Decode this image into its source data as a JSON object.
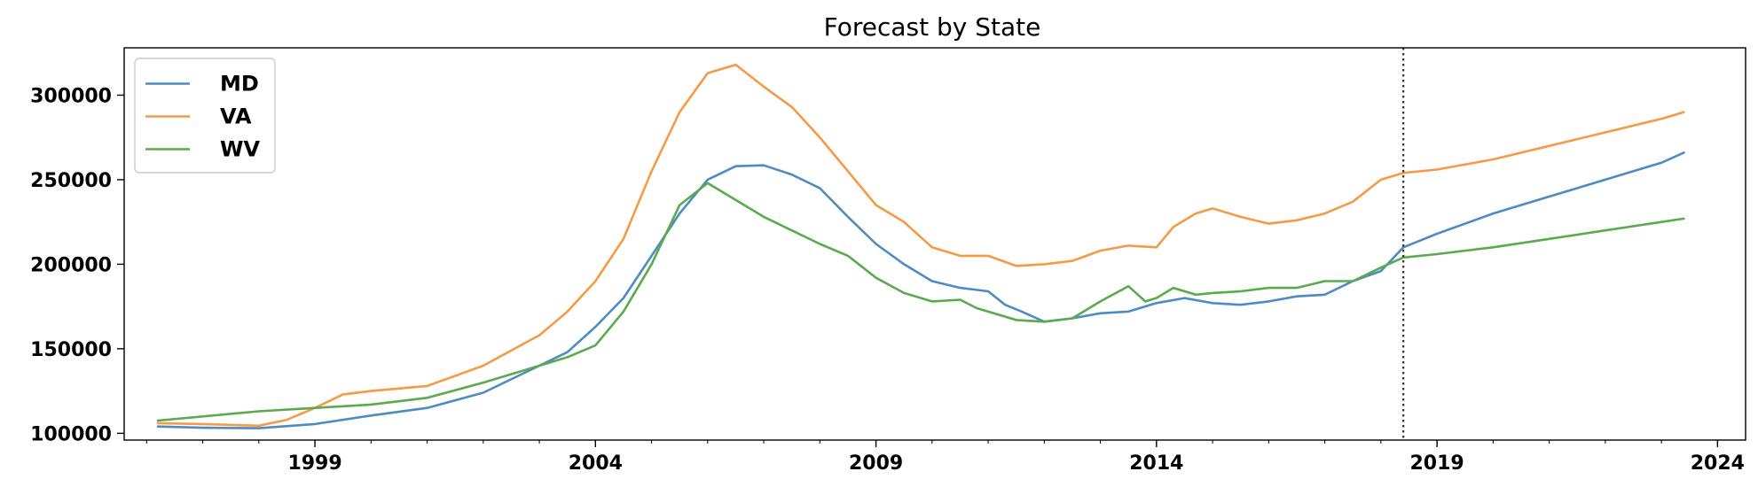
{
  "chart_data": {
    "type": "line",
    "title": "Forecast by State",
    "xlabel": "",
    "ylabel": "",
    "xlim": [
      1995.6,
      2024.5
    ],
    "ylim": [
      96000,
      328000
    ],
    "x_ticks": [
      1999,
      2004,
      2009,
      2014,
      2019,
      2024
    ],
    "y_ticks": [
      100000,
      150000,
      200000,
      250000,
      300000
    ],
    "y_tick_labels": [
      "100000",
      "150000",
      "200000",
      "250000",
      "300000"
    ],
    "minor_x_ticks_per_year": true,
    "forecast_start": 2018.4,
    "legend_position": "top-left",
    "grid": false,
    "series": [
      {
        "name": "MD",
        "color": "#4f8bc2",
        "points": [
          [
            1996.2,
            104000
          ],
          [
            1997.0,
            103300
          ],
          [
            1998.0,
            103000
          ],
          [
            1999.0,
            105500
          ],
          [
            2000.0,
            110500
          ],
          [
            2001.0,
            115000
          ],
          [
            2002.0,
            124000
          ],
          [
            2003.0,
            140000
          ],
          [
            2003.5,
            148000
          ],
          [
            2004.0,
            163000
          ],
          [
            2004.5,
            180000
          ],
          [
            2005.0,
            205000
          ],
          [
            2005.5,
            230000
          ],
          [
            2006.0,
            250000
          ],
          [
            2006.5,
            258000
          ],
          [
            2007.0,
            258500
          ],
          [
            2007.5,
            253000
          ],
          [
            2008.0,
            245000
          ],
          [
            2008.5,
            228000
          ],
          [
            2009.0,
            212000
          ],
          [
            2009.5,
            200000
          ],
          [
            2010.0,
            190000
          ],
          [
            2010.5,
            186000
          ],
          [
            2011.0,
            184000
          ],
          [
            2011.3,
            176000
          ],
          [
            2011.6,
            172000
          ],
          [
            2012.0,
            166000
          ],
          [
            2012.5,
            168000
          ],
          [
            2013.0,
            171000
          ],
          [
            2013.5,
            172000
          ],
          [
            2014.0,
            177000
          ],
          [
            2014.5,
            180000
          ],
          [
            2015.0,
            177000
          ],
          [
            2015.5,
            176000
          ],
          [
            2016.0,
            178000
          ],
          [
            2016.5,
            181000
          ],
          [
            2017.0,
            182000
          ],
          [
            2017.5,
            190000
          ],
          [
            2018.0,
            196000
          ],
          [
            2018.4,
            210000
          ],
          [
            2019.0,
            218000
          ],
          [
            2020.0,
            230000
          ],
          [
            2021.0,
            240000
          ],
          [
            2022.0,
            250000
          ],
          [
            2023.0,
            260000
          ],
          [
            2023.4,
            266000
          ]
        ]
      },
      {
        "name": "VA",
        "color": "#f59a45",
        "points": [
          [
            1996.2,
            106000
          ],
          [
            1997.0,
            105500
          ],
          [
            1998.0,
            104500
          ],
          [
            1998.5,
            108000
          ],
          [
            1999.0,
            115000
          ],
          [
            1999.5,
            123000
          ],
          [
            2000.0,
            125000
          ],
          [
            2001.0,
            128000
          ],
          [
            2002.0,
            140000
          ],
          [
            2003.0,
            158000
          ],
          [
            2003.5,
            172000
          ],
          [
            2004.0,
            190000
          ],
          [
            2004.5,
            215000
          ],
          [
            2005.0,
            255000
          ],
          [
            2005.5,
            290000
          ],
          [
            2006.0,
            313000
          ],
          [
            2006.5,
            318000
          ],
          [
            2007.0,
            305000
          ],
          [
            2007.5,
            293000
          ],
          [
            2008.0,
            275000
          ],
          [
            2008.5,
            255000
          ],
          [
            2009.0,
            235000
          ],
          [
            2009.5,
            225000
          ],
          [
            2010.0,
            210000
          ],
          [
            2010.5,
            205000
          ],
          [
            2011.0,
            205000
          ],
          [
            2011.5,
            199000
          ],
          [
            2012.0,
            200000
          ],
          [
            2012.5,
            202000
          ],
          [
            2013.0,
            208000
          ],
          [
            2013.5,
            211000
          ],
          [
            2014.0,
            210000
          ],
          [
            2014.3,
            222000
          ],
          [
            2014.7,
            230000
          ],
          [
            2015.0,
            233000
          ],
          [
            2015.5,
            228000
          ],
          [
            2016.0,
            224000
          ],
          [
            2016.5,
            226000
          ],
          [
            2017.0,
            230000
          ],
          [
            2017.5,
            237000
          ],
          [
            2018.0,
            250000
          ],
          [
            2018.4,
            254000
          ],
          [
            2019.0,
            256000
          ],
          [
            2020.0,
            262000
          ],
          [
            2021.0,
            270000
          ],
          [
            2022.0,
            278000
          ],
          [
            2023.0,
            286000
          ],
          [
            2023.4,
            290000
          ]
        ]
      },
      {
        "name": "WV",
        "color": "#5aaa4e",
        "points": [
          [
            1996.2,
            107500
          ],
          [
            1997.0,
            110000
          ],
          [
            1998.0,
            113000
          ],
          [
            1999.0,
            115000
          ],
          [
            2000.0,
            117000
          ],
          [
            2001.0,
            121000
          ],
          [
            2002.0,
            130000
          ],
          [
            2003.0,
            140000
          ],
          [
            2003.5,
            145000
          ],
          [
            2004.0,
            152000
          ],
          [
            2004.5,
            172000
          ],
          [
            2005.0,
            200000
          ],
          [
            2005.5,
            235000
          ],
          [
            2006.0,
            248000
          ],
          [
            2006.5,
            238000
          ],
          [
            2007.0,
            228000
          ],
          [
            2007.5,
            220000
          ],
          [
            2008.0,
            212000
          ],
          [
            2008.5,
            205000
          ],
          [
            2009.0,
            192000
          ],
          [
            2009.5,
            183000
          ],
          [
            2010.0,
            178000
          ],
          [
            2010.5,
            179000
          ],
          [
            2010.8,
            174000
          ],
          [
            2011.0,
            172000
          ],
          [
            2011.5,
            167000
          ],
          [
            2012.0,
            166000
          ],
          [
            2012.5,
            168000
          ],
          [
            2013.0,
            178000
          ],
          [
            2013.5,
            187000
          ],
          [
            2013.8,
            178000
          ],
          [
            2014.0,
            180000
          ],
          [
            2014.3,
            186000
          ],
          [
            2014.7,
            182000
          ],
          [
            2015.0,
            183000
          ],
          [
            2015.5,
            184000
          ],
          [
            2016.0,
            186000
          ],
          [
            2016.5,
            186000
          ],
          [
            2017.0,
            190000
          ],
          [
            2017.5,
            190000
          ],
          [
            2018.0,
            198000
          ],
          [
            2018.4,
            204000
          ],
          [
            2019.0,
            206000
          ],
          [
            2020.0,
            210000
          ],
          [
            2021.0,
            215000
          ],
          [
            2022.0,
            220000
          ],
          [
            2023.0,
            225000
          ],
          [
            2023.4,
            227000
          ]
        ]
      }
    ]
  }
}
